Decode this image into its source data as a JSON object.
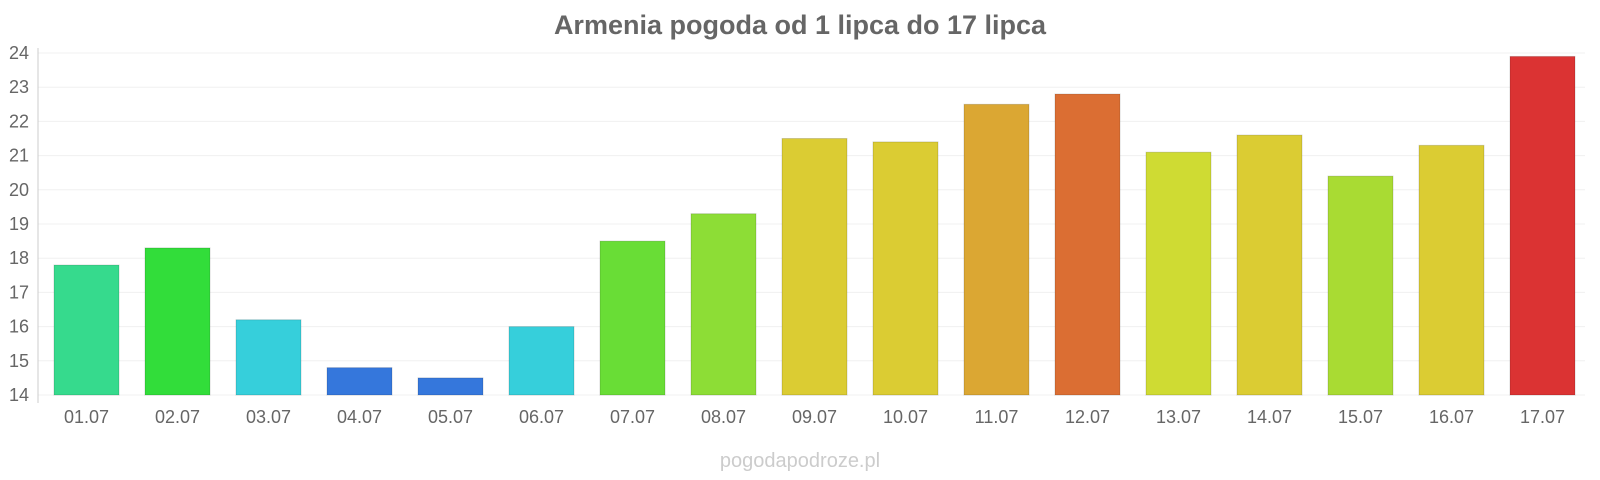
{
  "watermark": "pogodapodroze.pl",
  "chart_data": {
    "type": "bar",
    "title": "Armenia pogoda od 1 lipca do 17 lipca",
    "xlabel": "",
    "ylabel": "",
    "categories": [
      "01.07",
      "02.07",
      "03.07",
      "04.07",
      "05.07",
      "06.07",
      "07.07",
      "08.07",
      "09.07",
      "10.07",
      "11.07",
      "12.07",
      "13.07",
      "14.07",
      "15.07",
      "16.07",
      "17.07"
    ],
    "values": [
      17.8,
      18.3,
      16.2,
      14.8,
      14.5,
      16.0,
      18.5,
      19.3,
      21.5,
      21.4,
      22.5,
      22.8,
      21.1,
      21.6,
      20.4,
      21.3,
      23.9
    ],
    "colors": [
      "#36da8d",
      "#32dd3a",
      "#36cfdb",
      "#3577dc",
      "#3577dc",
      "#36cfdb",
      "#69dd36",
      "#8ddd36",
      "#dbcc33",
      "#dbcc33",
      "#dba733",
      "#db6e33",
      "#cfdb33",
      "#dbcc33",
      "#a9db33",
      "#dbcc33",
      "#db3333"
    ],
    "yticks": [
      14,
      15,
      16,
      17,
      18,
      19,
      20,
      21,
      22,
      23,
      24
    ],
    "ylim": [
      14,
      24
    ],
    "grid": true,
    "legend": "none"
  }
}
